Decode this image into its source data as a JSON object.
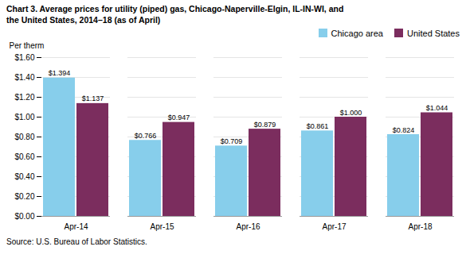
{
  "chart_data": {
    "type": "bar",
    "title": "Chart 3. Average prices for utility (piped) gas, Chicago-Naperville-Elgin, IL-IN-WI, and",
    "subtitle": "the United States, 2014–18  (as of April)",
    "ylabel": "Per therm",
    "caption": "Source: U.S. Bureau of Labor Statistics.",
    "categories": [
      "Apr-14",
      "Apr-15",
      "Apr-16",
      "Apr-17",
      "Apr-18"
    ],
    "series": [
      {
        "name": "Chicago area",
        "color": "#87CEEB",
        "values": [
          1.394,
          0.766,
          0.709,
          0.861,
          0.824
        ],
        "value_labels": [
          "$1.394",
          "$0.766",
          "$0.709",
          "$0.861",
          "$0.824"
        ]
      },
      {
        "name": "United States",
        "color": "#7B2D5E",
        "values": [
          1.137,
          0.947,
          0.879,
          1.0,
          1.044
        ],
        "value_labels": [
          "$1.137",
          "$0.947",
          "$0.879",
          "$1.000",
          "$1.044"
        ]
      }
    ],
    "ylim": [
      0,
      1.6
    ],
    "yticks": [
      {
        "value": 0.0,
        "label": "$0.00"
      },
      {
        "value": 0.2,
        "label": "$0.20"
      },
      {
        "value": 0.4,
        "label": "$0.40"
      },
      {
        "value": 0.6,
        "label": "$0.60"
      },
      {
        "value": 0.8,
        "label": "$0.80"
      },
      {
        "value": 1.0,
        "label": "$1.00"
      },
      {
        "value": 1.2,
        "label": "$1.20"
      },
      {
        "value": 1.4,
        "label": "$1.40"
      },
      {
        "value": 1.6,
        "label": "$1.60"
      }
    ],
    "grid": true,
    "legend": "upper right",
    "data_labels": true
  }
}
